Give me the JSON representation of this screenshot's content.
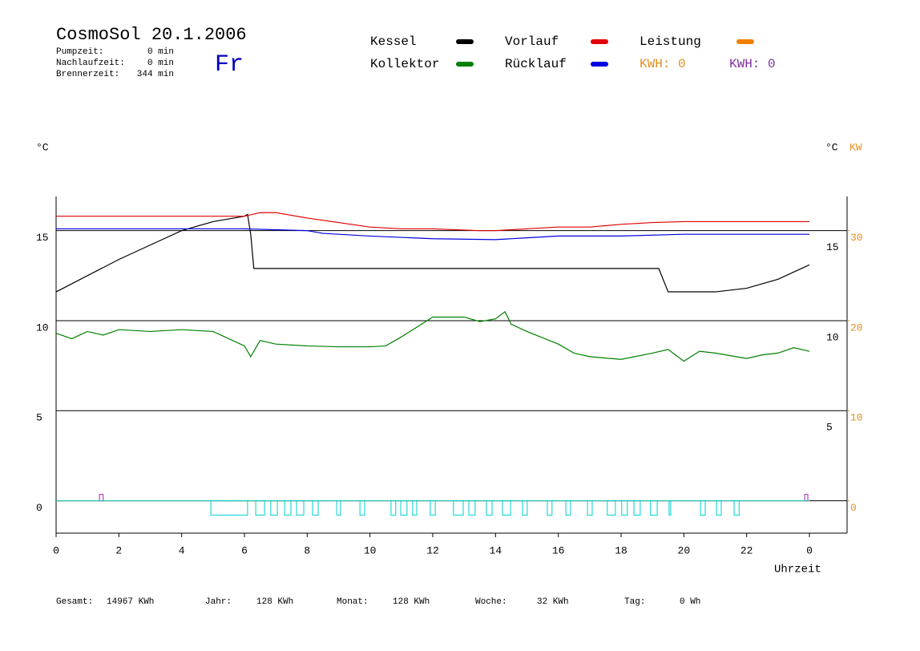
{
  "chart_data": {
    "type": "line",
    "title": "CosmoSol 20.1.2006",
    "day": "Fr",
    "info": [
      {
        "label": "Pumpzeit:",
        "value": "0 min"
      },
      {
        "label": "Nachlaufzeit:",
        "value": "0 min"
      },
      {
        "label": "Brennerzeit:",
        "value": "344 min"
      }
    ],
    "y_label": "°C",
    "y2_label": "°C",
    "y2_unit": "KW",
    "x_label": "Uhrzeit",
    "kwh_labels": [
      {
        "text": "KWH: 0",
        "color": "#e09020"
      },
      {
        "text": "KWH: 0",
        "color": "#8030a0"
      }
    ],
    "xlim": [
      0,
      25.2
    ],
    "xticks": [
      0,
      2,
      4,
      6,
      8,
      10,
      12,
      14,
      16,
      18,
      20,
      22,
      {
        "value": 24,
        "label": "0"
      }
    ],
    "ylim": [
      -1.8,
      16.9
    ],
    "yticks": [
      0,
      5,
      10,
      15
    ],
    "y2lim": [
      -3.6,
      33.8
    ],
    "y2ticks": [
      0,
      10,
      20,
      30
    ],
    "grid": true,
    "series": [
      {
        "name": "Kessel",
        "color": "#000000",
        "x": [
          0,
          1,
          2,
          3,
          4,
          5,
          6,
          6.1,
          6.2,
          6.3,
          19.2,
          19.5,
          20,
          21,
          22,
          23,
          24
        ],
        "values": [
          11.6,
          12.5,
          13.4,
          14.2,
          15.0,
          15.5,
          15.8,
          15.9,
          14.8,
          12.9,
          12.9,
          11.6,
          11.6,
          11.6,
          11.8,
          12.3,
          13.1
        ]
      },
      {
        "name": "Vorlauf",
        "color": "#e00000",
        "x": [
          0,
          6,
          6.5,
          7,
          8,
          9,
          10,
          11,
          12,
          13.5,
          14,
          15,
          16,
          17,
          18,
          19,
          20,
          24
        ],
        "values": [
          15.8,
          15.8,
          16.0,
          16.0,
          15.7,
          15.45,
          15.2,
          15.1,
          15.1,
          15.0,
          15.0,
          15.1,
          15.2,
          15.2,
          15.35,
          15.45,
          15.5,
          15.5
        ]
      },
      {
        "name": "Leistung",
        "color": "#f08000",
        "axis": "y2",
        "x": [
          0,
          24
        ],
        "values": [
          0,
          0
        ]
      },
      {
        "name": "Kollektor",
        "color": "#008000",
        "x": [
          0,
          0.5,
          1,
          1.5,
          2,
          3,
          4,
          5,
          5.5,
          6,
          6.2,
          6.5,
          7,
          8,
          9,
          10,
          10.5,
          11,
          11.5,
          12,
          13,
          13.5,
          14,
          14.3,
          14.5,
          15,
          16,
          16.5,
          17,
          18,
          19,
          19.5,
          20,
          20.5,
          21,
          22,
          22.5,
          23,
          23.5,
          24
        ],
        "values": [
          9.3,
          9.0,
          9.4,
          9.2,
          9.5,
          9.4,
          9.5,
          9.4,
          9.0,
          8.6,
          8.0,
          8.9,
          8.7,
          8.6,
          8.55,
          8.55,
          8.6,
          9.1,
          9.65,
          10.2,
          10.2,
          9.95,
          10.1,
          10.5,
          9.8,
          9.4,
          8.7,
          8.2,
          8.0,
          7.85,
          8.2,
          8.4,
          7.75,
          8.3,
          8.2,
          7.9,
          8.1,
          8.2,
          8.5,
          8.3
        ]
      },
      {
        "name": "Rücklauf",
        "color": "#0000e0",
        "x": [
          0,
          6,
          8,
          8.5,
          10,
          12,
          14,
          15,
          16,
          18,
          20,
          24
        ],
        "values": [
          15.1,
          15.1,
          15.0,
          14.85,
          14.7,
          14.55,
          14.5,
          14.6,
          14.7,
          14.7,
          14.8,
          14.8
        ]
      }
    ],
    "pump_color": "#00d0d0",
    "pump_level": -0.8,
    "pump_intervals": [
      [
        4.93,
        6.1
      ],
      [
        6.36,
        6.64
      ],
      [
        6.84,
        7.05
      ],
      [
        7.28,
        7.48
      ],
      [
        7.66,
        7.89
      ],
      [
        8.17,
        8.35
      ],
      [
        8.94,
        9.06
      ],
      [
        9.68,
        9.83
      ],
      [
        10.67,
        10.82
      ],
      [
        10.98,
        11.18
      ],
      [
        11.36,
        11.49
      ],
      [
        11.92,
        12.08
      ],
      [
        12.66,
        12.97
      ],
      [
        13.15,
        13.35
      ],
      [
        13.71,
        13.89
      ],
      [
        14.22,
        14.48
      ],
      [
        14.86,
        15.01
      ],
      [
        15.65,
        15.8
      ],
      [
        16.24,
        16.39
      ],
      [
        16.93,
        17.08
      ],
      [
        17.56,
        17.82
      ],
      [
        18.02,
        18.2
      ],
      [
        18.41,
        18.61
      ],
      [
        18.94,
        19.15
      ],
      [
        19.53,
        19.58
      ],
      [
        20.53,
        20.68
      ],
      [
        21.04,
        21.19
      ],
      [
        21.6,
        21.76
      ]
    ],
    "burner_color": "#a020a0",
    "burner_level": 0.35,
    "burner_intervals": [
      [
        1.38,
        1.5
      ],
      [
        23.85,
        23.95
      ]
    ],
    "footer": [
      {
        "label": "Gesamt:",
        "value": "14967 KWh"
      },
      {
        "label": "Jahr:",
        "value": "128 KWh"
      },
      {
        "label": "Monat:",
        "value": "128 KWh"
      },
      {
        "label": "Woche:",
        "value": "32 KWh"
      },
      {
        "label": "Tag:",
        "value": "0 Wh"
      }
    ]
  }
}
